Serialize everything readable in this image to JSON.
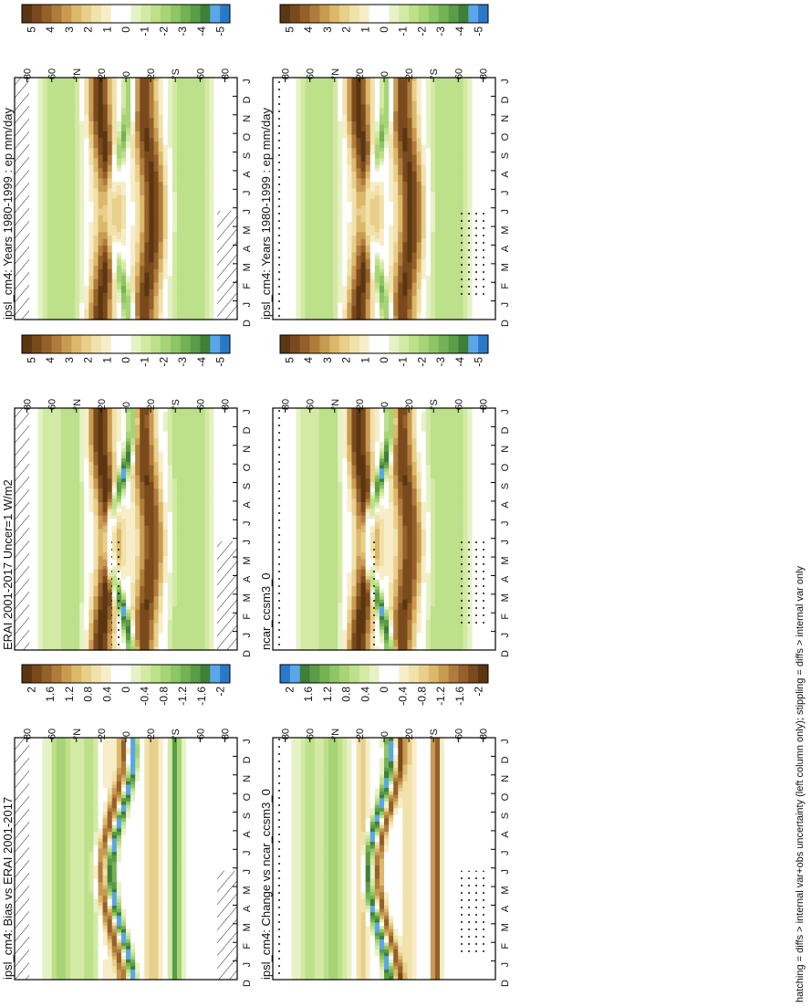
{
  "figure": {
    "footer": "hatching = diffs > internal var+obs uncertainty (left column only); stippling = diffs > internal var only"
  },
  "chart_data": [
    {
      "panel": "left-top",
      "type": "heatmap",
      "title": "ipsl_cm4: Years 1980-1999 : ep mm/day",
      "x_categories": [
        "D",
        "J",
        "F",
        "M",
        "A",
        "M",
        "J",
        "J",
        "A",
        "S",
        "O",
        "N",
        "D",
        "J"
      ],
      "y_tick_labels": [
        "80",
        "60",
        "°N",
        "20",
        "0",
        "20",
        "°S",
        "60",
        "80"
      ],
      "field": "annual-cycle",
      "colorbar": {
        "labels": [
          "5",
          "4",
          "3",
          "2",
          "1",
          "0",
          "-1",
          "-2",
          "-3",
          "-4",
          "-5"
        ],
        "colors": [
          "#5a3612",
          "#7a4a1c",
          "#95602a",
          "#b07c3c",
          "#c99a52",
          "#dcb86a",
          "#e8cf8a",
          "#f1e1aa",
          "#f7edc8",
          "#ffffff",
          "#ffffff",
          "#e6f2c6",
          "#d2eaa4",
          "#bde08a",
          "#a7d477",
          "#8fc665",
          "#74b355",
          "#5a9c47",
          "#3f7f38",
          "#5aa6e8",
          "#2a78c8"
        ]
      }
    },
    {
      "panel": "right-top",
      "type": "heatmap",
      "title": "ipsl_cm4: Years 1980-1999 : ep mm/day",
      "x_categories": [
        "D",
        "J",
        "F",
        "M",
        "A",
        "M",
        "J",
        "J",
        "A",
        "S",
        "O",
        "N",
        "D",
        "J"
      ],
      "y_tick_labels": [
        "80",
        "60",
        "°N",
        "20",
        "0",
        "20",
        "°S",
        "60",
        "80"
      ],
      "field": "annual-cycle",
      "colorbar": {
        "labels": [
          "5",
          "4",
          "3",
          "2",
          "1",
          "0",
          "-1",
          "-2",
          "-3",
          "-4",
          "-5"
        ],
        "colors": [
          "#5a3612",
          "#7a4a1c",
          "#95602a",
          "#b07c3c",
          "#c99a52",
          "#dcb86a",
          "#e8cf8a",
          "#f1e1aa",
          "#f7edc8",
          "#ffffff",
          "#ffffff",
          "#e6f2c6",
          "#d2eaa4",
          "#bde08a",
          "#a7d477",
          "#8fc665",
          "#74b355",
          "#5a9c47",
          "#3f7f38",
          "#5aa6e8",
          "#2a78c8"
        ]
      }
    },
    {
      "panel": "left-middle",
      "type": "heatmap",
      "title": "ERAI 2001-2017 Uncer=1 W/m2",
      "x_categories": [
        "D",
        "J",
        "F",
        "M",
        "A",
        "M",
        "J",
        "J",
        "A",
        "S",
        "O",
        "N",
        "D",
        "J"
      ],
      "y_tick_labels": [
        "80",
        "60",
        "°N",
        "20",
        "0",
        "20",
        "°S",
        "60",
        "80"
      ],
      "field": "annual-cycle-itcz",
      "colorbar": {
        "labels": [
          "5",
          "4",
          "3",
          "2",
          "1",
          "0",
          "-1",
          "-2",
          "-3",
          "-4",
          "-5"
        ],
        "colors": [
          "#5a3612",
          "#7a4a1c",
          "#95602a",
          "#b07c3c",
          "#c99a52",
          "#dcb86a",
          "#e8cf8a",
          "#f1e1aa",
          "#f7edc8",
          "#ffffff",
          "#ffffff",
          "#e6f2c6",
          "#d2eaa4",
          "#bde08a",
          "#a7d477",
          "#8fc665",
          "#74b355",
          "#5a9c47",
          "#3f7f38",
          "#5aa6e8",
          "#2a78c8"
        ]
      }
    },
    {
      "panel": "right-middle",
      "type": "heatmap",
      "title": "ncar_ccsm3_0",
      "x_categories": [
        "D",
        "J",
        "F",
        "M",
        "A",
        "M",
        "J",
        "J",
        "A",
        "S",
        "O",
        "N",
        "D",
        "J"
      ],
      "y_tick_labels": [
        "80",
        "60",
        "°N",
        "20",
        "0",
        "20",
        "°S",
        "60",
        "80"
      ],
      "field": "annual-cycle-itcz",
      "colorbar": {
        "labels": [
          "5",
          "4",
          "3",
          "2",
          "1",
          "0",
          "-1",
          "-2",
          "-3",
          "-4",
          "-5"
        ],
        "colors": [
          "#5a3612",
          "#7a4a1c",
          "#95602a",
          "#b07c3c",
          "#c99a52",
          "#dcb86a",
          "#e8cf8a",
          "#f1e1aa",
          "#f7edc8",
          "#ffffff",
          "#ffffff",
          "#e6f2c6",
          "#d2eaa4",
          "#bde08a",
          "#a7d477",
          "#8fc665",
          "#74b355",
          "#5a9c47",
          "#3f7f38",
          "#5aa6e8",
          "#2a78c8"
        ]
      }
    },
    {
      "panel": "left-bottom",
      "type": "heatmap",
      "title": "ipsl_cm4: Bias vs ERAI 2001-2017",
      "x_categories": [
        "D",
        "J",
        "F",
        "M",
        "A",
        "M",
        "J",
        "J",
        "A",
        "S",
        "O",
        "N",
        "D",
        "J"
      ],
      "y_tick_labels": [
        "80",
        "60",
        "°N",
        "20",
        "0",
        "20",
        "°S",
        "60",
        "80"
      ],
      "field": "difference",
      "colorbar": {
        "labels": [
          "2",
          "1.6",
          "1.2",
          "0.8",
          "0.4",
          "0",
          "-0.4",
          "-0.8",
          "-1.2",
          "-1.6",
          "-2"
        ],
        "colors": [
          "#5a3612",
          "#7a4a1c",
          "#95602a",
          "#b07c3c",
          "#c99a52",
          "#dcb86a",
          "#e8cf8a",
          "#f1e1aa",
          "#f7edc8",
          "#ffffff",
          "#ffffff",
          "#e6f2c6",
          "#d2eaa4",
          "#bde08a",
          "#a7d477",
          "#8fc665",
          "#74b355",
          "#5a9c47",
          "#3f7f38",
          "#5aa6e8",
          "#2a78c8"
        ]
      }
    },
    {
      "panel": "right-bottom",
      "type": "heatmap",
      "title": "ipsl_cm4: Change vs ncar_ccsm3_0",
      "x_categories": [
        "D",
        "J",
        "F",
        "M",
        "A",
        "M",
        "J",
        "J",
        "A",
        "S",
        "O",
        "N",
        "D",
        "J"
      ],
      "y_tick_labels": [
        "80",
        "60",
        "°N",
        "20",
        "0",
        "20",
        "°S",
        "60",
        "80"
      ],
      "field": "difference-reversed",
      "colorbar": {
        "labels": [
          "2",
          "1.6",
          "1.2",
          "0.8",
          "0.4",
          "0",
          "-0.4",
          "-0.8",
          "-1.2",
          "-1.6",
          "-2"
        ],
        "colors": [
          "#2a78c8",
          "#5aa6e8",
          "#3f7f38",
          "#5a9c47",
          "#74b355",
          "#8fc665",
          "#a7d477",
          "#bde08a",
          "#d2eaa4",
          "#e6f2c6",
          "#ffffff",
          "#ffffff",
          "#f7edc8",
          "#f1e1aa",
          "#e8cf8a",
          "#dcb86a",
          "#c99a52",
          "#b07c3c",
          "#95602a",
          "#7a4a1c",
          "#5a3612"
        ]
      }
    }
  ]
}
